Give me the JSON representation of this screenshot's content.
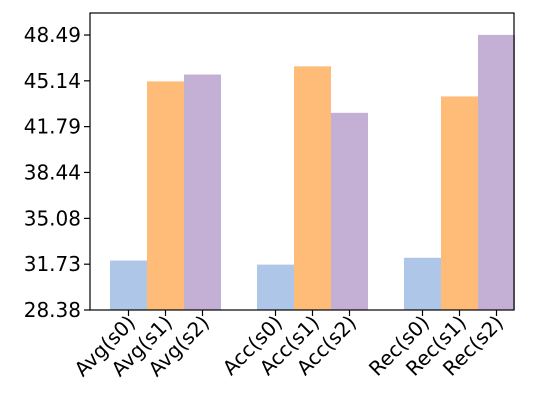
{
  "chart_data": {
    "type": "bar",
    "title": "",
    "xlabel": "",
    "ylabel": "",
    "ylim": [
      28.38,
      50.1
    ],
    "yticks": [
      "28.38",
      "31.73",
      "35.08",
      "38.44",
      "41.79",
      "45.14",
      "48.49"
    ],
    "grid": false,
    "legend": "none",
    "categories": [
      "Avg(s0)",
      "Avg(s1)",
      "Avg(s2)",
      "Acc(s0)",
      "Acc(s1)",
      "Acc(s2)",
      "Rec(s0)",
      "Rec(s1)",
      "Rec(s2)"
    ],
    "groups": [
      {
        "bars": [
          {
            "label": "Avg(s0)",
            "value": 32.0,
            "color": "#aec7e8"
          },
          {
            "label": "Avg(s1)",
            "value": 45.1,
            "color": "#ffbb78"
          },
          {
            "label": "Avg(s2)",
            "value": 45.6,
            "color": "#c5b0d5"
          }
        ]
      },
      {
        "bars": [
          {
            "label": "Acc(s0)",
            "value": 31.7,
            "color": "#aec7e8"
          },
          {
            "label": "Acc(s1)",
            "value": 46.2,
            "color": "#ffbb78"
          },
          {
            "label": "Acc(s2)",
            "value": 42.8,
            "color": "#c5b0d5"
          }
        ]
      },
      {
        "bars": [
          {
            "label": "Rec(s0)",
            "value": 32.2,
            "color": "#aec7e8"
          },
          {
            "label": "Rec(s1)",
            "value": 44.0,
            "color": "#ffbb78"
          },
          {
            "label": "Rec(s2)",
            "value": 48.5,
            "color": "#c5b0d5"
          }
        ]
      }
    ]
  }
}
